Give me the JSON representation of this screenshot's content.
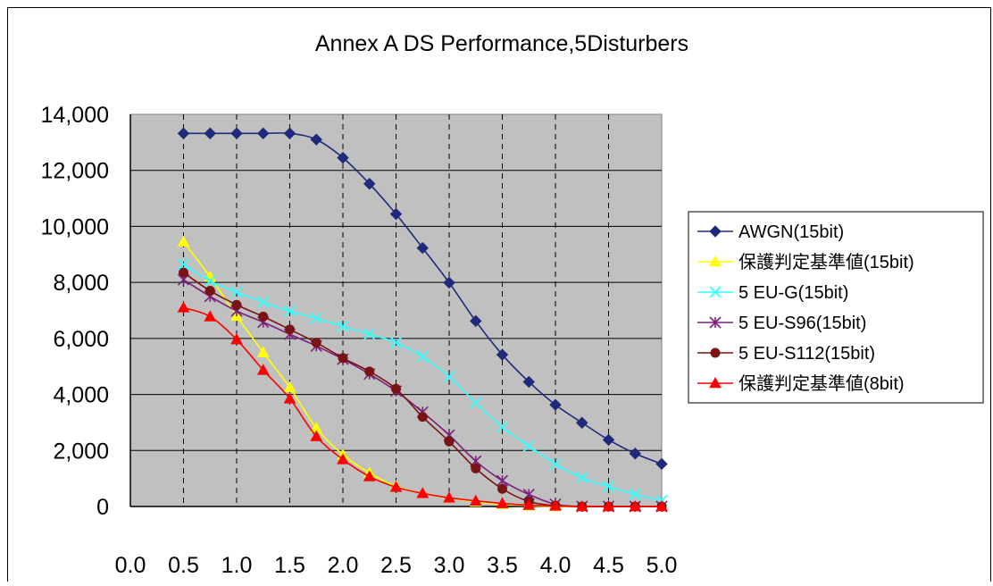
{
  "chart_data": {
    "type": "line",
    "title": "Annex A   DS Performance,5Disturbers",
    "xlabel": "",
    "ylabel": "",
    "xlim": [
      0.0,
      5.0
    ],
    "ylim": [
      0,
      14000
    ],
    "x_ticks": [
      "0.0",
      "0.5",
      "1.0",
      "1.5",
      "2.0",
      "2.5",
      "3.0",
      "3.5",
      "4.0",
      "4.5",
      "5.0"
    ],
    "y_ticks": [
      "0",
      "2,000",
      "4,000",
      "6,000",
      "8,000",
      "10,000",
      "12,000",
      "14,000"
    ],
    "grid": true,
    "legend_position": "right",
    "x": [
      0.5,
      0.75,
      1.0,
      1.25,
      1.5,
      1.75,
      2.0,
      2.25,
      2.5,
      2.75,
      3.0,
      3.25,
      3.5,
      3.75,
      4.0,
      4.25,
      4.5,
      4.75,
      5.0
    ],
    "series": [
      {
        "name": "AWGN(15bit)",
        "color": "#1f2a7a",
        "marker": "diamond",
        "values": [
          13320,
          13320,
          13320,
          13320,
          13320,
          13100,
          12450,
          11520,
          10440,
          9230,
          7990,
          6620,
          5420,
          4450,
          3630,
          2990,
          2380,
          1890,
          1520
        ]
      },
      {
        "name": "保護判定基準値(15bit)",
        "color": "#ffff00",
        "marker": "triangle",
        "values": [
          9450,
          8200,
          6800,
          5500,
          4250,
          2800,
          1850,
          1200,
          720,
          470,
          300,
          170,
          80,
          30,
          0,
          0,
          0,
          0,
          0
        ]
      },
      {
        "name": "5 EU-G(15bit)",
        "color": "#33ffff",
        "marker": "x",
        "values": [
          8650,
          8050,
          7650,
          7300,
          6970,
          6720,
          6430,
          6150,
          5850,
          5350,
          4640,
          3700,
          2830,
          2160,
          1520,
          1030,
          710,
          430,
          210
        ]
      },
      {
        "name": "5 EU-S96(15bit)",
        "color": "#7a1f7a",
        "marker": "star",
        "values": [
          8100,
          7500,
          6980,
          6580,
          6150,
          5730,
          5260,
          4730,
          4120,
          3370,
          2550,
          1620,
          920,
          430,
          80,
          0,
          0,
          0,
          0
        ]
      },
      {
        "name": "5 EU-S112(15bit)",
        "color": "#7a1414",
        "marker": "circle",
        "values": [
          8350,
          7700,
          7200,
          6780,
          6320,
          5850,
          5300,
          4820,
          4200,
          3200,
          2320,
          1360,
          630,
          180,
          30,
          0,
          0,
          0,
          0
        ]
      },
      {
        "name": "保護判定基準値(8bit)",
        "color": "#ff0000",
        "marker": "triangle",
        "values": [
          7100,
          6780,
          5960,
          4870,
          3850,
          2500,
          1680,
          1070,
          690,
          470,
          310,
          200,
          110,
          50,
          20,
          0,
          0,
          0,
          0
        ]
      }
    ]
  }
}
